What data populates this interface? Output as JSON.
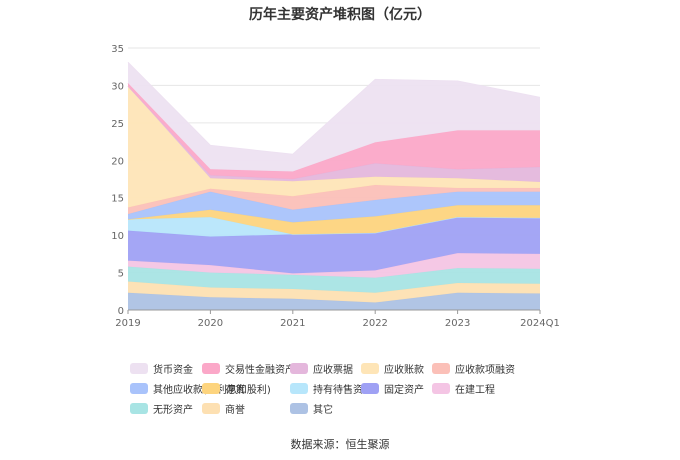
{
  "chart_data": {
    "type": "area",
    "stacked": true,
    "title": "历年主要资产堆积图（亿元）",
    "categories": [
      "2019",
      "2020",
      "2021",
      "2022",
      "2023",
      "2024Q1"
    ],
    "ylim": [
      0,
      35
    ],
    "yticks": [
      0,
      5,
      10,
      15,
      20,
      25,
      30,
      35
    ],
    "grid": true,
    "legend_position": "bottom",
    "series": [
      {
        "name": "其它",
        "color": "#adc2e4",
        "values": [
          2.3,
          1.7,
          1.5,
          1.0,
          2.3,
          2.2
        ]
      },
      {
        "name": "商誉",
        "color": "#fde0b2",
        "values": [
          1.5,
          1.3,
          1.3,
          1.3,
          1.3,
          1.3
        ]
      },
      {
        "name": "无形资产",
        "color": "#a8e4e4",
        "values": [
          2.0,
          2.0,
          1.9,
          2.0,
          2.0,
          2.0
        ]
      },
      {
        "name": "在建工程",
        "color": "#f4c5e4",
        "values": [
          0.8,
          1.0,
          0.2,
          1.0,
          2.0,
          2.0
        ]
      },
      {
        "name": "固定资产",
        "color": "#9fa1f4",
        "values": [
          4.0,
          3.8,
          5.2,
          5.0,
          4.8,
          4.8
        ]
      },
      {
        "name": "持有待售资产",
        "color": "#b7e6fb",
        "values": [
          1.5,
          2.6,
          0.0,
          0.0,
          0.0,
          0.0
        ]
      },
      {
        "name": "存货",
        "color": "#fdd47e",
        "values": [
          0.0,
          1.0,
          1.6,
          2.2,
          1.6,
          1.7
        ]
      },
      {
        "name": "其他应收款(含利息和股利)",
        "color": "#a9c3fb",
        "values": [
          0.7,
          2.4,
          1.7,
          2.2,
          1.8,
          1.8
        ]
      },
      {
        "name": "应收款项融资",
        "color": "#fbc0b8",
        "values": [
          0.9,
          0.4,
          1.8,
          2.0,
          0.5,
          0.5
        ]
      },
      {
        "name": "应收账款",
        "color": "#fee5b7",
        "values": [
          16.2,
          1.4,
          2.0,
          1.1,
          1.3,
          0.8
        ]
      },
      {
        "name": "应收票据",
        "color": "#e4b7dc",
        "values": [
          0.0,
          0.4,
          0.3,
          1.8,
          1.2,
          2.0
        ]
      },
      {
        "name": "交易性金融资产",
        "color": "#fba8c8",
        "values": [
          0.4,
          0.8,
          1.0,
          2.8,
          5.2,
          4.9
        ]
      },
      {
        "name": "货币资金",
        "color": "#ede1f1",
        "values": [
          2.8,
          3.2,
          2.3,
          8.4,
          6.6,
          4.4
        ]
      }
    ],
    "legend_order": [
      "货币资金",
      "交易性金融资产",
      "应收票据",
      "应收账款",
      "应收款项融资",
      "其他应收款(含利息和股利)",
      "存货",
      "持有待售资产",
      "固定资产",
      "在建工程",
      "无形资产",
      "商誉",
      "其它"
    ]
  },
  "source_text": "数据来源：恒生聚源"
}
